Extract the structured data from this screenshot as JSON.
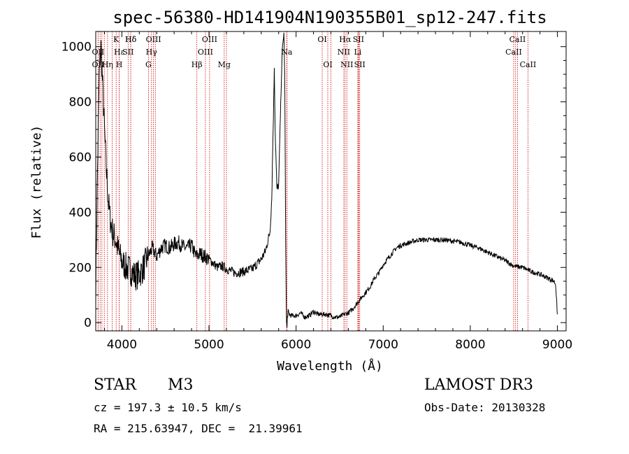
{
  "chart_data": {
    "type": "line",
    "title": "spec-56380-HD141904N190355B01_sp12-247.fits",
    "xlabel": "Wavelength (Å)",
    "ylabel": "Flux (relative)",
    "xlim": [
      3700,
      9100
    ],
    "ylim": [
      -30,
      1055
    ],
    "xticks": [
      "4000",
      "5000",
      "6000",
      "7000",
      "8000",
      "9000"
    ],
    "yticks": [
      "0",
      "200",
      "400",
      "600",
      "800",
      "1000"
    ],
    "series_color": "#000000",
    "line_color": "#cc0000",
    "series": [
      {
        "x": [
          3700,
          3720,
          3740,
          3760,
          3780,
          3800,
          3820,
          3840,
          3860,
          3880,
          3900,
          3930,
          3960,
          4000,
          4050,
          4100,
          4150,
          4200,
          4250,
          4300,
          4350,
          4400,
          4450,
          4500,
          4550,
          4600,
          4650,
          4700,
          4750,
          4800,
          4850,
          4900,
          4950,
          5000,
          5050,
          5100,
          5150,
          5200,
          5300,
          5400,
          5500,
          5600,
          5650,
          5700,
          5720,
          5740,
          5750,
          5760,
          5780,
          5800,
          5820,
          5840,
          5860,
          5870,
          5880,
          5890,
          5895,
          5900,
          5910,
          5920,
          5950,
          6000,
          6050,
          6100,
          6150,
          6200,
          6250,
          6300,
          6350,
          6400,
          6450,
          6500,
          6550,
          6600,
          6650,
          6700,
          6750,
          6800,
          6850,
          6900,
          6950,
          7000,
          7050,
          7100,
          7150,
          7200,
          7300,
          7400,
          7500,
          7600,
          7700,
          7800,
          7900,
          8000,
          8100,
          8200,
          8300,
          8400,
          8500,
          8600,
          8700,
          8800,
          8900,
          8960,
          8980,
          8990,
          9000
        ],
        "y": [
          120,
          550,
          900,
          1000,
          850,
          700,
          560,
          460,
          390,
          350,
          320,
          300,
          260,
          220,
          200,
          190,
          170,
          175,
          200,
          240,
          270,
          240,
          270,
          280,
          270,
          285,
          290,
          275,
          270,
          280,
          240,
          250,
          240,
          230,
          215,
          200,
          205,
          195,
          180,
          185,
          195,
          230,
          260,
          330,
          450,
          750,
          930,
          700,
          480,
          500,
          750,
          980,
          1050,
          900,
          300,
          0,
          -20,
          20,
          40,
          30,
          25,
          25,
          35,
          20,
          25,
          40,
          30,
          30,
          30,
          25,
          20,
          20,
          30,
          35,
          50,
          70,
          90,
          110,
          130,
          160,
          180,
          210,
          230,
          250,
          270,
          280,
          290,
          300,
          300,
          300,
          300,
          295,
          290,
          280,
          270,
          255,
          240,
          225,
          205,
          200,
          185,
          175,
          160,
          150,
          140,
          80,
          30
        ]
      }
    ],
    "lines_top": [
      {
        "label": "Hδ",
        "x": 4102
      },
      {
        "label": "K",
        "x": 3934
      },
      {
        "label": "Hδ",
        "x": 4102
      },
      {
        "label": "OIII",
        "x": 4363
      },
      {
        "label": "OIII",
        "x": 5007
      },
      {
        "label": "OI",
        "x": 6300
      },
      {
        "label": "Hα",
        "x": 6563
      },
      {
        "label": "SII",
        "x": 6716
      },
      {
        "label": "CaII",
        "x": 8542
      }
    ],
    "lines_mid": [
      {
        "label": "OII",
        "x": 3727
      },
      {
        "label": "Hε",
        "x": 3970
      },
      {
        "label": "SII",
        "x": 4072
      },
      {
        "label": "Hγ",
        "x": 4340
      },
      {
        "label": "OIII",
        "x": 4959
      },
      {
        "label": "Na",
        "x": 5893
      },
      {
        "label": "NII",
        "x": 6548
      },
      {
        "label": "Li",
        "x": 6708
      },
      {
        "label": "CaII",
        "x": 8498
      }
    ],
    "lines_bot": [
      {
        "label": "OII",
        "x": 3727
      },
      {
        "label": "Hη",
        "x": 3835
      },
      {
        "label": "H",
        "x": 3969
      },
      {
        "label": "G",
        "x": 4305
      },
      {
        "label": "Hβ",
        "x": 4861
      },
      {
        "label": "Mg",
        "x": 5175
      },
      {
        "label": "OI",
        "x": 6364
      },
      {
        "label": "NII",
        "x": 6583
      },
      {
        "label": "SII",
        "x": 6731
      },
      {
        "label": "CaII",
        "x": 8662
      }
    ],
    "extra_lines": [
      3750,
      3771,
      3798,
      3889,
      4384,
      5200,
      5896,
      6400,
      6720,
      8520
    ]
  },
  "info": {
    "class": "STAR",
    "subclass": "M3",
    "survey": "LAMOST DR3",
    "cz": "cz = 197.3 ± 10.5 km/s",
    "obs_date": "Obs-Date: 20130328",
    "radec": "RA = 215.63947, DEC =  21.39961"
  }
}
